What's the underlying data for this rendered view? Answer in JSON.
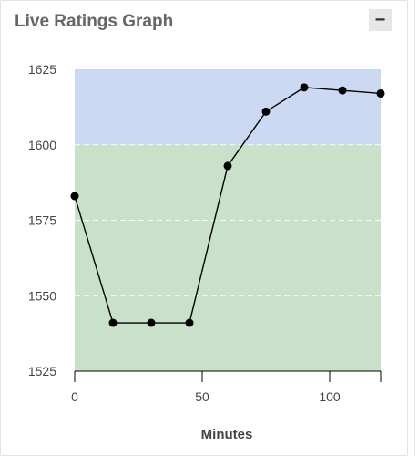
{
  "panel": {
    "title": "Live Ratings Graph",
    "collapse_label": "−",
    "collapse_icon": "minus-icon"
  },
  "chart_data": {
    "type": "line",
    "title": "",
    "xlabel": "Minutes",
    "ylabel": "",
    "xlim": [
      0,
      120
    ],
    "ylim": [
      1525,
      1625
    ],
    "x_ticks": [
      0,
      50,
      100
    ],
    "y_ticks": [
      1525,
      1550,
      1575,
      1600,
      1625
    ],
    "grid": "horizontal dashed",
    "bands": [
      {
        "from": 1525,
        "to": 1600,
        "color": "#c9e0c9"
      },
      {
        "from": 1600,
        "to": 1625,
        "color": "#ccd9f2"
      }
    ],
    "series": [
      {
        "x": [
          0,
          15,
          30,
          45,
          60,
          75,
          90,
          105,
          120
        ],
        "y": [
          1583,
          1541,
          1541,
          1541,
          1593,
          1611,
          1619,
          1618,
          1617
        ],
        "color": "#000000"
      }
    ]
  }
}
